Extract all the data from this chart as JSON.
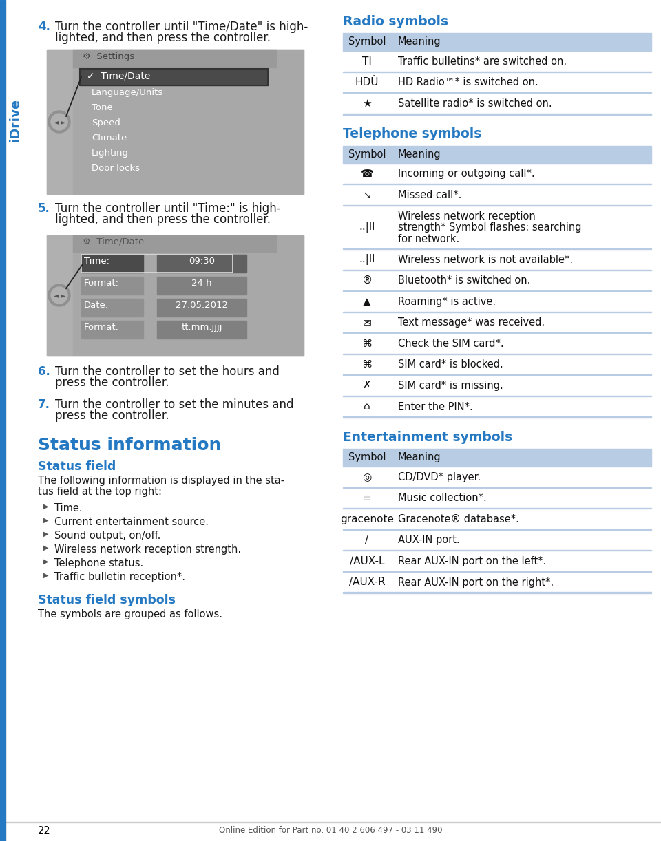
{
  "page_bg": "#ffffff",
  "blue_heading": "#2479C2",
  "table_header_bg": "#B8CCE4",
  "table_line_color": "#A8BAD0",
  "idrive_color": "#2479C2",
  "step_color": "#2479C2",
  "body_color": "#1a1a1a",
  "footer_text": "Online Edition for Part no. 01 40 2 606 497 - 03 11 490",
  "page_number": "22",
  "radio_heading": "Radio symbols",
  "radio_rows": [
    {
      "symbol": "TI",
      "meaning": "Traffic bulletins* are switched on.",
      "nlines": 1
    },
    {
      "symbol": "HDÙ",
      "meaning": "HD Radio™* is switched on.",
      "nlines": 1
    },
    {
      "symbol": "★",
      "meaning": "Satellite radio* is switched on.",
      "nlines": 1
    }
  ],
  "telephone_heading": "Telephone symbols",
  "telephone_rows": [
    {
      "symbol": "☎",
      "meaning": "Incoming or outgoing call*.",
      "nlines": 1
    },
    {
      "symbol": "↘",
      "meaning": "Missed call*.",
      "nlines": 1
    },
    {
      "symbol": "..|ll",
      "meaning": "Wireless network reception\nstrength* Symbol flashes: searching\nfor network.",
      "nlines": 3
    },
    {
      "symbol": "..|ll",
      "meaning": "Wireless network is not available*.",
      "nlines": 1
    },
    {
      "symbol": "®",
      "meaning": "Bluetooth* is switched on.",
      "nlines": 1
    },
    {
      "symbol": "▲",
      "meaning": "Roaming* is active.",
      "nlines": 1
    },
    {
      "symbol": "✉",
      "meaning": "Text message* was received.",
      "nlines": 1
    },
    {
      "symbol": "⌘",
      "meaning": "Check the SIM card*.",
      "nlines": 1
    },
    {
      "symbol": "⌘",
      "meaning": "SIM card* is blocked.",
      "nlines": 1
    },
    {
      "symbol": "✗",
      "meaning": "SIM card* is missing.",
      "nlines": 1
    },
    {
      "symbol": "⌂",
      "meaning": "Enter the PIN*.",
      "nlines": 1
    }
  ],
  "entertainment_heading": "Entertainment symbols",
  "entertainment_rows": [
    {
      "symbol": "◎",
      "meaning": "CD/DVD* player.",
      "nlines": 1
    },
    {
      "symbol": "≡",
      "meaning": "Music collection*.",
      "nlines": 1
    },
    {
      "symbol": "gracenote",
      "meaning": "Gracenote® database*.",
      "nlines": 1
    },
    {
      "symbol": "/",
      "meaning": "AUX-IN port.",
      "nlines": 1
    },
    {
      "symbol": "/AUX-L",
      "meaning": "Rear AUX-IN port on the left*.",
      "nlines": 1
    },
    {
      "symbol": "/AUX-R",
      "meaning": "Rear AUX-IN port on the right*.",
      "nlines": 1
    }
  ],
  "status_bullets": [
    "Time.",
    "Current entertainment source.",
    "Sound output, on/off.",
    "Wireless network reception strength.",
    "Telephone status.",
    "Traffic bulletin reception*."
  ],
  "screen1_menu": [
    "Language/Units",
    "Tone",
    "Speed",
    "Climate",
    "Lighting",
    "Door locks"
  ],
  "screen2_rows": [
    [
      "Time:",
      "09:30",
      true
    ],
    [
      "Format:",
      "24 h",
      false
    ],
    [
      "Date:",
      "27.05.2012",
      false
    ],
    [
      "Format:",
      "tt.mm.jjjj",
      false
    ]
  ]
}
